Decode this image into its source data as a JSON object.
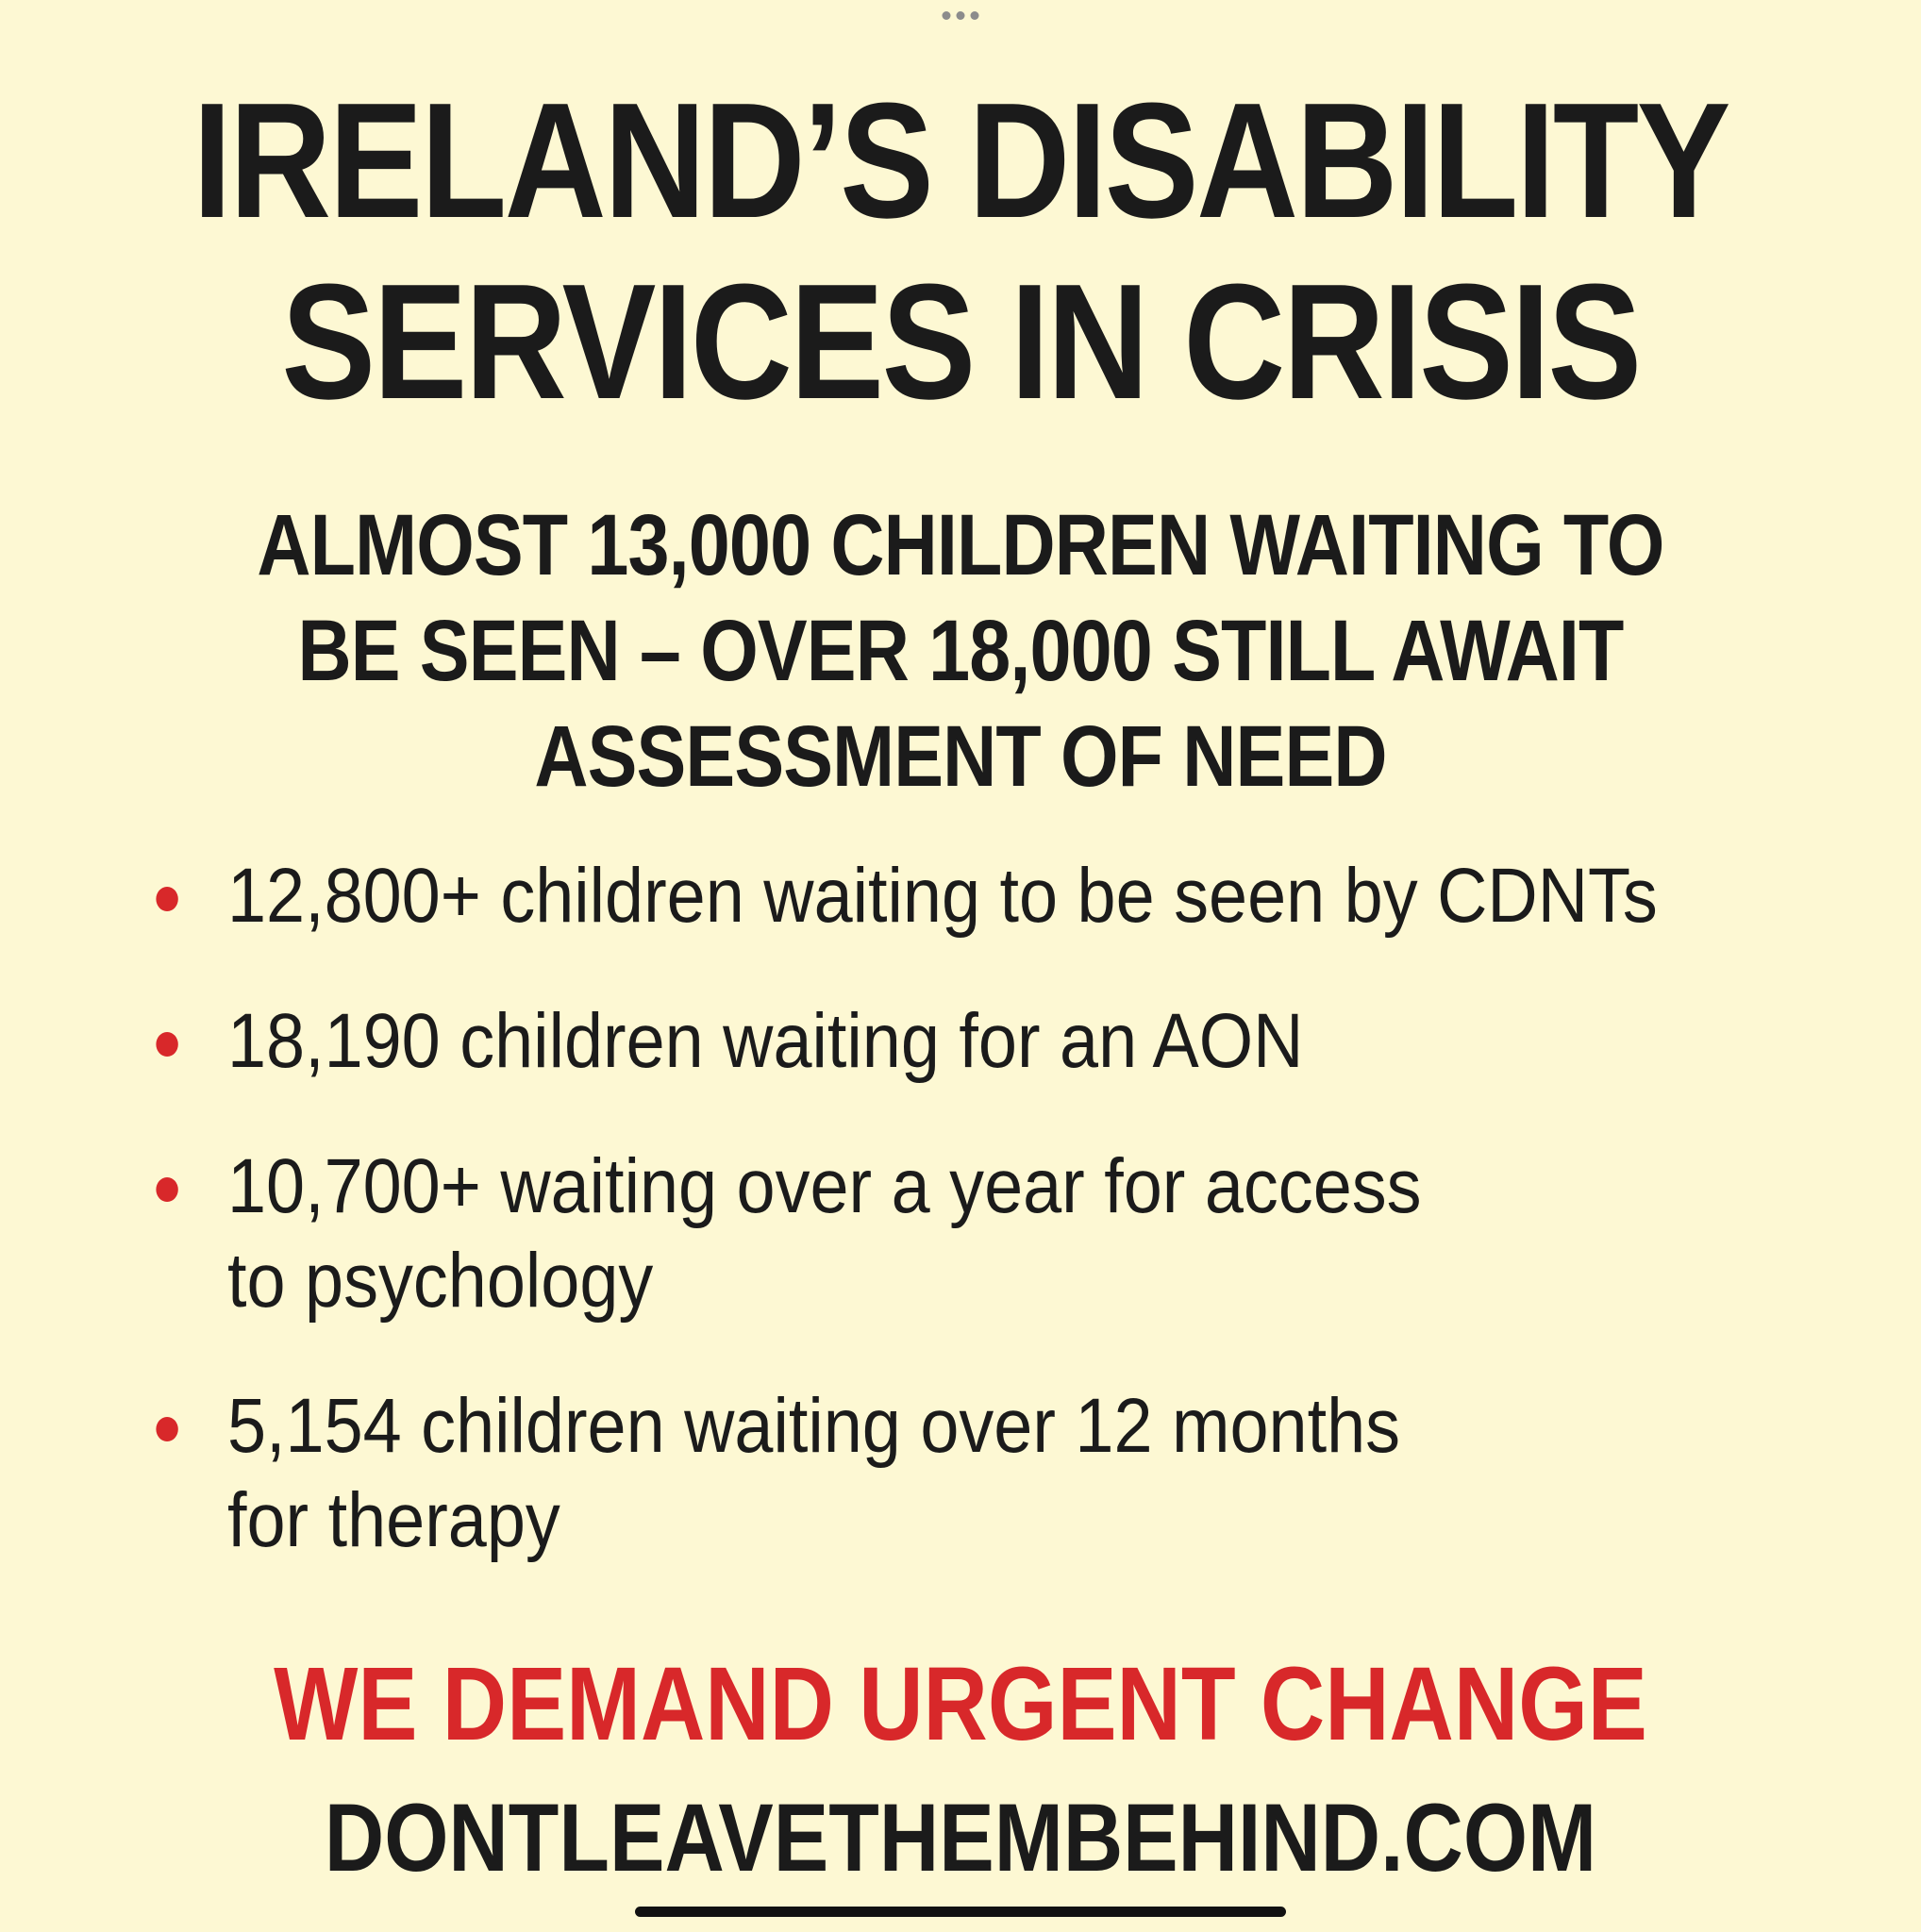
{
  "title": {
    "line1": "IRELAND’S DISABILITY",
    "line2": "SERVICES IN CRISIS"
  },
  "subtitle": {
    "line1": "ALMOST 13,000 CHILDREN WAITING TO",
    "line2": "BE SEEN – OVER 18,000 STILL AWAIT",
    "line3": "ASSESSMENT OF NEED"
  },
  "bullets": [
    {
      "line1": "12,800+ children waiting to be seen by CDNTs",
      "line2": ""
    },
    {
      "line1": "18,190 children waiting for an AON",
      "line2": ""
    },
    {
      "line1": "10,700+ waiting over a year for access",
      "line2": "to psychology"
    },
    {
      "line1": "5,154 children waiting over 12 months",
      "line2": "for therapy"
    }
  ],
  "demand": "WE DEMAND URGENT CHANGE",
  "website": "DONTLEAVETHEMBEHIND.COM",
  "colors": {
    "background": "#fdf8d3",
    "text": "#1b1b1b",
    "accent_red": "#d8282a"
  }
}
